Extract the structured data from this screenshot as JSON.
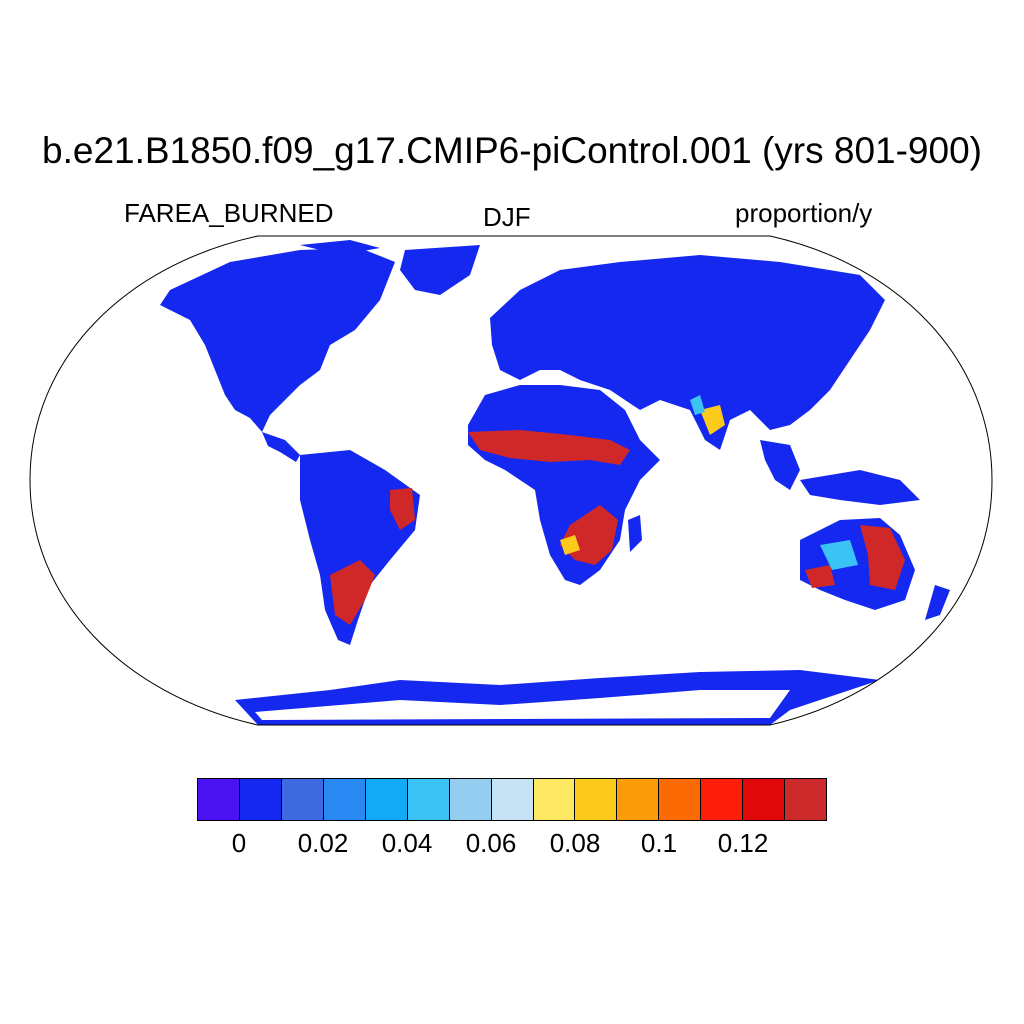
{
  "title": "b.e21.B1850.f09_g17.CMIP6-piControl.001 (yrs 801-900)",
  "variable_label": "FAREA_BURNED",
  "season_label": "DJF",
  "units_label": "proportion/y",
  "colorbar": {
    "colors": [
      "#4a12f0",
      "#1428f0",
      "#3e6adf",
      "#2a88f2",
      "#12a9f6",
      "#3cc3f5",
      "#94cdf0",
      "#c6e3f6",
      "#fde964",
      "#fcca1b",
      "#fc9c0b",
      "#fc6a06",
      "#fc1e0a",
      "#e00808",
      "#cc2a2a"
    ],
    "tick_labels": [
      "0",
      "0.02",
      "0.04",
      "0.06",
      "0.08",
      "0.1",
      "0.12"
    ]
  },
  "map_colors": {
    "land": "#1428f0",
    "ocean": "#ffffff",
    "high": "#d02828",
    "mid": "#fcca1b",
    "light": "#3cc3f5"
  }
}
